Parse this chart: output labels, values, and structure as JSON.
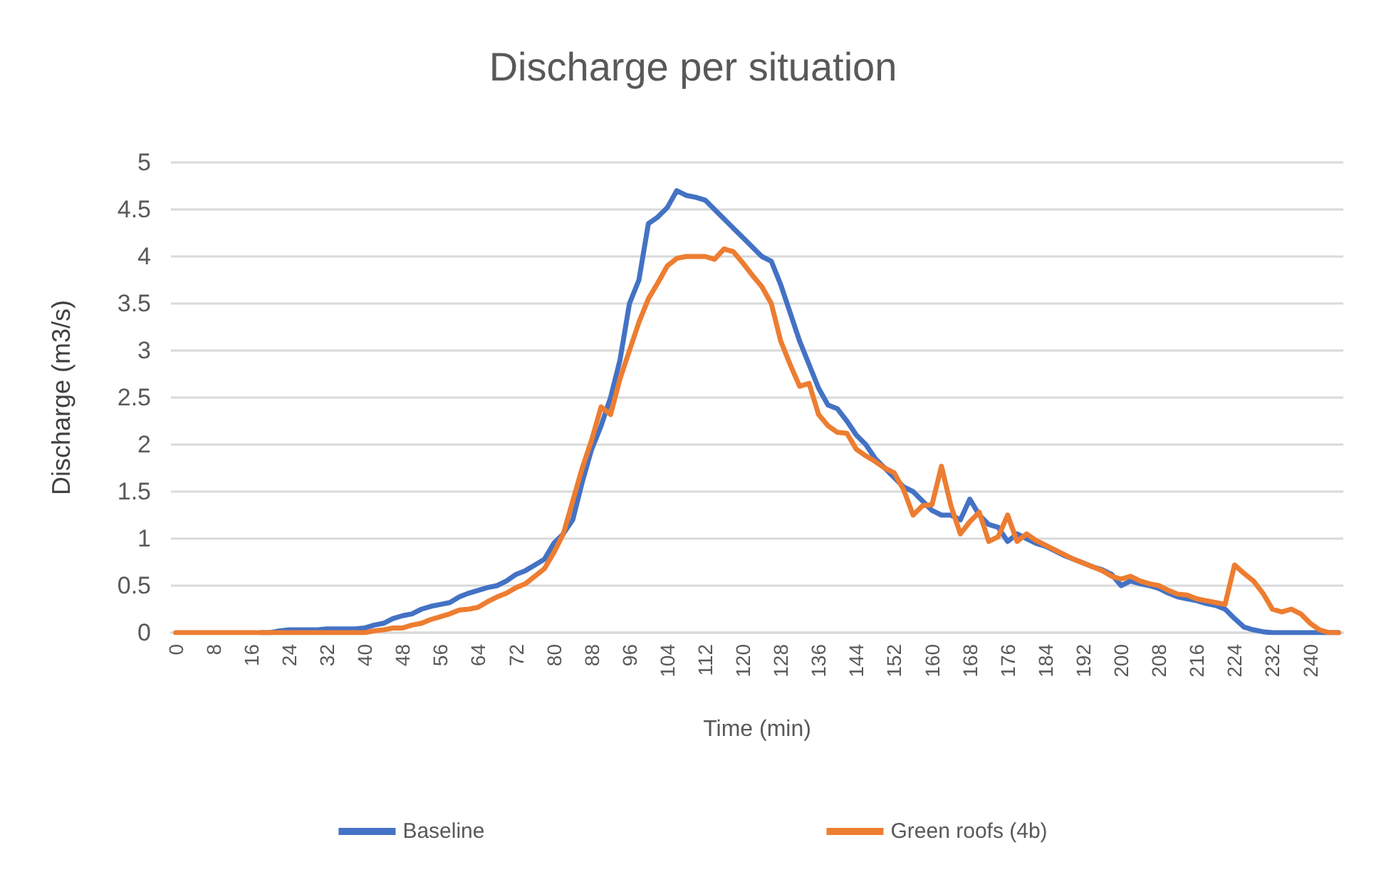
{
  "chart_data": {
    "type": "line",
    "title": "Discharge per situation",
    "xlabel": "Time (min)",
    "ylabel": "Discharge (m3/s)",
    "categories": [
      "0",
      null,
      null,
      null,
      "8",
      null,
      null,
      null,
      "16",
      null,
      null,
      null,
      "24",
      null,
      null,
      null,
      "32",
      null,
      null,
      null,
      "40",
      null,
      null,
      null,
      "48",
      null,
      null,
      null,
      "56",
      null,
      null,
      null,
      "64",
      null,
      null,
      null,
      "72",
      null,
      null,
      null,
      "80",
      null,
      null,
      null,
      "88",
      null,
      null,
      null,
      "96",
      null,
      null,
      null,
      "104",
      null,
      null,
      null,
      "112",
      null,
      null,
      null,
      "120",
      null,
      null,
      null,
      "128",
      null,
      null,
      null,
      "136",
      null,
      null,
      null,
      "144",
      null,
      null,
      null,
      "152",
      null,
      null,
      null,
      "160",
      null,
      null,
      null,
      "168",
      null,
      null,
      null,
      "176",
      null,
      null,
      null,
      "184",
      null,
      null,
      null,
      "192",
      null,
      null,
      null,
      "200",
      null,
      null,
      null,
      "208",
      null,
      null,
      null,
      "216",
      null,
      null,
      null,
      "224",
      null,
      null,
      null,
      "232",
      null,
      null,
      null,
      "240",
      null,
      null,
      null
    ],
    "series": [
      {
        "name": "Baseline",
        "color": "#4472c4",
        "values": [
          null,
          null,
          null,
          null,
          null,
          null,
          null,
          null,
          null,
          0,
          0,
          0.02,
          0.03,
          0.03,
          0.03,
          0.03,
          0.04,
          0.04,
          0.04,
          0.04,
          0.05,
          0.08,
          0.1,
          0.15,
          0.18,
          0.2,
          0.25,
          0.28,
          0.3,
          0.32,
          0.38,
          0.42,
          0.45,
          0.48,
          0.5,
          0.55,
          0.62,
          0.66,
          0.72,
          0.78,
          0.95,
          1.05,
          1.2,
          1.6,
          1.95,
          2.2,
          2.5,
          2.9,
          3.5,
          3.75,
          4.35,
          4.42,
          4.52,
          4.7,
          4.65,
          4.63,
          4.6,
          4.5,
          4.4,
          4.3,
          4.2,
          4.1,
          4.0,
          3.95,
          3.7,
          3.4,
          3.1,
          2.85,
          2.6,
          2.42,
          2.38,
          2.25,
          2.1,
          2.0,
          1.85,
          1.75,
          1.65,
          1.55,
          1.5,
          1.4,
          1.3,
          1.25,
          1.25,
          1.2,
          1.42,
          1.25,
          1.15,
          1.12,
          0.97,
          1.05,
          1.0,
          0.95,
          0.92,
          0.87,
          0.82,
          0.78,
          0.74,
          0.7,
          0.67,
          0.62,
          0.5,
          0.55,
          0.52,
          0.5,
          0.47,
          0.42,
          0.38,
          0.36,
          0.34,
          0.31,
          0.29,
          0.25,
          0.15,
          0.06,
          0.03,
          0.01,
          0,
          0,
          0,
          0,
          0,
          0,
          0,
          0
        ]
      },
      {
        "name": "Green roofs (4b)",
        "color": "#ed7d31",
        "values": [
          0,
          0,
          0,
          0,
          0,
          0,
          0,
          0,
          0,
          0,
          0,
          0,
          0,
          0,
          0,
          0,
          0,
          0,
          0,
          0,
          0,
          0.02,
          0.03,
          0.05,
          0.05,
          0.08,
          0.1,
          0.14,
          0.17,
          0.2,
          0.24,
          0.25,
          0.27,
          0.33,
          0.38,
          0.42,
          0.48,
          0.52,
          0.6,
          0.68,
          0.85,
          1.05,
          1.4,
          1.75,
          2.05,
          2.4,
          2.32,
          2.7,
          3.0,
          3.3,
          3.55,
          3.72,
          3.9,
          3.98,
          4.0,
          4.0,
          4.0,
          3.97,
          4.08,
          4.05,
          3.93,
          3.8,
          3.68,
          3.5,
          3.1,
          2.85,
          2.62,
          2.65,
          2.32,
          2.2,
          2.13,
          2.12,
          1.95,
          1.88,
          1.82,
          1.75,
          1.7,
          1.52,
          1.25,
          1.35,
          1.36,
          1.77,
          1.35,
          1.05,
          1.18,
          1.28,
          0.97,
          1.02,
          1.25,
          0.97,
          1.05,
          0.98,
          0.93,
          0.88,
          0.83,
          0.78,
          0.74,
          0.7,
          0.66,
          0.6,
          0.57,
          0.6,
          0.55,
          0.52,
          0.5,
          0.45,
          0.41,
          0.4,
          0.36,
          0.34,
          0.32,
          0.3,
          0.72,
          0.63,
          0.55,
          0.42,
          0.25,
          0.22,
          0.25,
          0.2,
          0.1,
          0.03,
          0,
          0
        ]
      }
    ],
    "ylim": [
      0,
      5
    ],
    "yticks": [
      0,
      0.5,
      1,
      1.5,
      2,
      2.5,
      3,
      3.5,
      4,
      4.5,
      5
    ],
    "grid": "y",
    "legend": "bottom",
    "marker": "none",
    "line_style": "solid"
  }
}
